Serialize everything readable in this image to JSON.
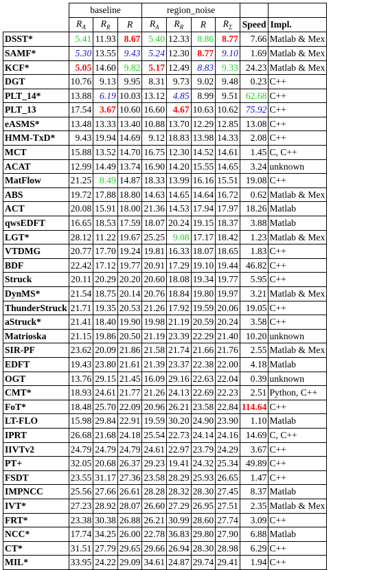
{
  "header": {
    "group_baseline": "baseline",
    "group_region_noise": "region_noise",
    "cols": [
      "R",
      "R",
      "R",
      "R",
      "R",
      "R",
      "R",
      "Speed",
      "Impl."
    ],
    "subs": [
      "A",
      "R",
      "",
      "A",
      "R",
      "",
      "Σ"
    ]
  },
  "rows": [
    {
      "name": "DSST*",
      "v": [
        "5.41",
        "11.93",
        "8.67",
        "5.40",
        "12.33",
        "8.86",
        "8.77",
        "7.66"
      ],
      "impl": "Matlab & Mex",
      "c": [
        "g",
        "",
        "r",
        "g",
        "",
        "g",
        "r",
        ""
      ]
    },
    {
      "name": "SAMF*",
      "v": [
        "5.30",
        "13.55",
        "9.43",
        "5.24",
        "12.30",
        "8.77",
        "9.10",
        "1.69"
      ],
      "impl": "Matlab & Mex",
      "c": [
        "b",
        "",
        "b",
        "b",
        "",
        "r",
        "b",
        ""
      ]
    },
    {
      "name": "KCF*",
      "v": [
        "5.05",
        "14.60",
        "9.82",
        "5.17",
        "12.49",
        "8.83",
        "9.33",
        "24.23"
      ],
      "impl": "Matlab & Mex",
      "c": [
        "r",
        "",
        "g",
        "r",
        "",
        "b",
        "g",
        ""
      ]
    },
    {
      "name": "DGT",
      "v": [
        "10.76",
        "9.13",
        "9.95",
        "8.31",
        "9.73",
        "9.02",
        "9.48",
        "0.23"
      ],
      "impl": "C++",
      "c": [
        "",
        "",
        "",
        "",
        "",
        "",
        "",
        ""
      ]
    },
    {
      "name": "PLT_14*",
      "v": [
        "13.88",
        "6.19",
        "10.03",
        "13.12",
        "4.85",
        "8.99",
        "9.51",
        "62.68"
      ],
      "impl": "C++",
      "c": [
        "",
        "b",
        "",
        "",
        "b",
        "",
        "",
        "g"
      ]
    },
    {
      "name": "PLT_13",
      "v": [
        "17.54",
        "3.67",
        "10.60",
        "16.60",
        "4.67",
        "10.63",
        "10.62",
        "75.92"
      ],
      "impl": "C++",
      "c": [
        "",
        "r",
        "",
        "",
        "r",
        "",
        "",
        "b"
      ]
    },
    {
      "name": "eASMS*",
      "v": [
        "13.48",
        "13.33",
        "13.40",
        "10.88",
        "13.70",
        "12.29",
        "12.85",
        "13.08"
      ],
      "impl": "C++",
      "c": [
        "",
        "",
        "",
        "",
        "",
        "",
        "",
        ""
      ]
    },
    {
      "name": "HMM-TxD*",
      "v": [
        "9.43",
        "19.94",
        "14.69",
        "9.12",
        "18.83",
        "13.98",
        "14.33",
        "2.08"
      ],
      "impl": "C++",
      "c": [
        "",
        "",
        "",
        "",
        "",
        "",
        "",
        ""
      ]
    },
    {
      "name": "MCT",
      "v": [
        "15.88",
        "13.52",
        "14.70",
        "16.75",
        "12.30",
        "14.52",
        "14.61",
        "1.45"
      ],
      "impl": "C, C++",
      "c": [
        "",
        "",
        "",
        "",
        "",
        "",
        "",
        ""
      ]
    },
    {
      "name": "ACAT",
      "v": [
        "12.99",
        "14.49",
        "13.74",
        "16.90",
        "14.20",
        "15.55",
        "14.65",
        "3.24"
      ],
      "impl": "unknown",
      "c": [
        "",
        "",
        "",
        "",
        "",
        "",
        "",
        ""
      ]
    },
    {
      "name": "MatFlow",
      "v": [
        "21.25",
        "8.49",
        "14.87",
        "18.33",
        "13.99",
        "16.16",
        "15.51",
        "19.08"
      ],
      "impl": "C++",
      "c": [
        "",
        "g",
        "",
        "",
        "",
        "",
        "",
        ""
      ]
    },
    {
      "name": "ABS",
      "v": [
        "19.72",
        "17.88",
        "18.80",
        "14.63",
        "14.65",
        "14.64",
        "16.72",
        "0.62"
      ],
      "impl": "Matlab & Mex",
      "c": [
        "",
        "",
        "",
        "",
        "",
        "",
        "",
        ""
      ]
    },
    {
      "name": "ACT",
      "v": [
        "20.08",
        "15.91",
        "18.00",
        "21.36",
        "14.53",
        "17.94",
        "17.97",
        "18.26"
      ],
      "impl": "Matlab",
      "c": [
        "",
        "",
        "",
        "",
        "",
        "",
        "",
        ""
      ]
    },
    {
      "name": "qwsEDFT",
      "v": [
        "16.65",
        "18.53",
        "17.59",
        "18.07",
        "20.24",
        "19.15",
        "18.37",
        "3.88"
      ],
      "impl": "Matlab",
      "c": [
        "",
        "",
        "",
        "",
        "",
        "",
        "",
        ""
      ]
    },
    {
      "name": "LGT*",
      "v": [
        "28.12",
        "11.22",
        "19.67",
        "25.25",
        "9.08",
        "17.17",
        "18.42",
        "1.23"
      ],
      "impl": "Matlab & Mex",
      "c": [
        "",
        "",
        "",
        "",
        "g",
        "",
        "",
        ""
      ]
    },
    {
      "name": "VTDMG",
      "v": [
        "20.77",
        "17.70",
        "19.24",
        "19.81",
        "16.33",
        "18.07",
        "18.65",
        "1.83"
      ],
      "impl": "C++",
      "c": [
        "",
        "",
        "",
        "",
        "",
        "",
        "",
        ""
      ]
    },
    {
      "name": "BDF",
      "v": [
        "22.42",
        "17.12",
        "19.77",
        "20.91",
        "17.29",
        "19.10",
        "19.44",
        "46.82"
      ],
      "impl": "C++",
      "c": [
        "",
        "",
        "",
        "",
        "",
        "",
        "",
        ""
      ]
    },
    {
      "name": "Struck",
      "v": [
        "20.11",
        "20.29",
        "20.20",
        "20.60",
        "18.08",
        "19.34",
        "19.77",
        "5.95"
      ],
      "impl": "C++",
      "c": [
        "",
        "",
        "",
        "",
        "",
        "",
        "",
        ""
      ]
    },
    {
      "name": "DynMS*",
      "v": [
        "21.54",
        "18.75",
        "20.14",
        "20.76",
        "18.84",
        "19.80",
        "19.97",
        "3.21"
      ],
      "impl": "Matlab & Mex",
      "c": [
        "",
        "",
        "",
        "",
        "",
        "",
        "",
        ""
      ]
    },
    {
      "name": "ThunderStruck",
      "v": [
        "21.71",
        "19.35",
        "20.53",
        "21.26",
        "17.92",
        "19.59",
        "20.06",
        "19.05"
      ],
      "impl": "C++",
      "c": [
        "",
        "",
        "",
        "",
        "",
        "",
        "",
        ""
      ]
    },
    {
      "name": "aStruck*",
      "v": [
        "21.41",
        "18.40",
        "19.90",
        "19.98",
        "21.19",
        "20.59",
        "20.24",
        "3.58"
      ],
      "impl": "C++",
      "c": [
        "",
        "",
        "",
        "",
        "",
        "",
        "",
        ""
      ]
    },
    {
      "name": "Matrioska",
      "v": [
        "21.15",
        "19.86",
        "20.50",
        "21.19",
        "23.39",
        "22.29",
        "21.40",
        "10.20"
      ],
      "impl": "unknown",
      "c": [
        "",
        "",
        "",
        "",
        "",
        "",
        "",
        ""
      ]
    },
    {
      "name": "SIR-PF",
      "v": [
        "23.62",
        "20.09",
        "21.86",
        "21.58",
        "21.74",
        "21.66",
        "21.76",
        "2.55"
      ],
      "impl": "Matlab & Mex",
      "c": [
        "",
        "",
        "",
        "",
        "",
        "",
        "",
        ""
      ]
    },
    {
      "name": "EDFT",
      "v": [
        "19.43",
        "23.80",
        "21.61",
        "21.39",
        "23.37",
        "22.38",
        "22.00",
        "4.18"
      ],
      "impl": "Matlab",
      "c": [
        "",
        "",
        "",
        "",
        "",
        "",
        "",
        ""
      ]
    },
    {
      "name": "OGT",
      "v": [
        "13.76",
        "29.15",
        "21.45",
        "16.09",
        "29.16",
        "22.63",
        "22.04",
        "0.39"
      ],
      "impl": "unknown",
      "c": [
        "",
        "",
        "",
        "",
        "",
        "",
        "",
        ""
      ]
    },
    {
      "name": "CMT*",
      "v": [
        "18.93",
        "24.61",
        "21.77",
        "21.26",
        "24.13",
        "22.69",
        "22.23",
        "2.51"
      ],
      "impl": "Python, C++",
      "c": [
        "",
        "",
        "",
        "",
        "",
        "",
        "",
        ""
      ]
    },
    {
      "name": "FoT*",
      "v": [
        "18.48",
        "25.70",
        "22.09",
        "20.96",
        "26.21",
        "23.58",
        "22.84",
        "114.64"
      ],
      "impl": "C++",
      "c": [
        "",
        "",
        "",
        "",
        "",
        "",
        "",
        "r"
      ]
    },
    {
      "name": "LT-FLO",
      "v": [
        "15.98",
        "29.84",
        "22.91",
        "19.59",
        "30.20",
        "24.90",
        "23.90",
        "1.10"
      ],
      "impl": "Matlab",
      "c": [
        "",
        "",
        "",
        "",
        "",
        "",
        "",
        ""
      ]
    },
    {
      "name": "IPRT",
      "v": [
        "26.68",
        "21.68",
        "24.18",
        "25.54",
        "22.73",
        "24.14",
        "24.16",
        "14.69"
      ],
      "impl": "C, C++",
      "c": [
        "",
        "",
        "",
        "",
        "",
        "",
        "",
        ""
      ]
    },
    {
      "name": "IIVTv2",
      "v": [
        "24.79",
        "24.79",
        "24.79",
        "24.61",
        "22.97",
        "23.79",
        "24.29",
        "3.67"
      ],
      "impl": "C++",
      "c": [
        "",
        "",
        "",
        "",
        "",
        "",
        "",
        ""
      ]
    },
    {
      "name": "PT+",
      "v": [
        "32.05",
        "20.68",
        "26.37",
        "29.23",
        "19.41",
        "24.32",
        "25.34",
        "49.89"
      ],
      "impl": "C++",
      "c": [
        "",
        "",
        "",
        "",
        "",
        "",
        "",
        ""
      ]
    },
    {
      "name": "FSDT",
      "v": [
        "23.55",
        "31.17",
        "27.36",
        "23.58",
        "28.29",
        "25.93",
        "26.65",
        "1.47"
      ],
      "impl": "C++",
      "c": [
        "",
        "",
        "",
        "",
        "",
        "",
        "",
        ""
      ]
    },
    {
      "name": "IMPNCC",
      "v": [
        "25.56",
        "27.66",
        "26.61",
        "28.28",
        "28.32",
        "28.30",
        "27.45",
        "8.37"
      ],
      "impl": "Matlab",
      "c": [
        "",
        "",
        "",
        "",
        "",
        "",
        "",
        ""
      ]
    },
    {
      "name": "IVT*",
      "v": [
        "27.23",
        "28.92",
        "28.07",
        "26.60",
        "27.29",
        "26.95",
        "27.51",
        "2.35"
      ],
      "impl": "Matlab & Mex",
      "c": [
        "",
        "",
        "",
        "",
        "",
        "",
        "",
        ""
      ]
    },
    {
      "name": "FRT*",
      "v": [
        "23.38",
        "30.38",
        "26.88",
        "26.21",
        "30.99",
        "28.60",
        "27.74",
        "3.09"
      ],
      "impl": "C++",
      "c": [
        "",
        "",
        "",
        "",
        "",
        "",
        "",
        ""
      ]
    },
    {
      "name": "NCC*",
      "v": [
        "17.74",
        "34.25",
        "26.00",
        "22.78",
        "36.83",
        "29.80",
        "27.90",
        "6.88"
      ],
      "impl": "Matlab",
      "c": [
        "",
        "",
        "",
        "",
        "",
        "",
        "",
        ""
      ]
    },
    {
      "name": "CT*",
      "v": [
        "31.51",
        "27.79",
        "29.65",
        "29.66",
        "26.94",
        "28.30",
        "28.98",
        "6.29"
      ],
      "impl": "C++",
      "c": [
        "",
        "",
        "",
        "",
        "",
        "",
        "",
        ""
      ]
    },
    {
      "name": "MIL*",
      "v": [
        "33.95",
        "24.22",
        "29.09",
        "34.61",
        "24.87",
        "29.74",
        "29.41",
        "1.94"
      ],
      "impl": "C++",
      "c": [
        "",
        "",
        "",
        "",
        "",
        "",
        "",
        ""
      ]
    }
  ]
}
